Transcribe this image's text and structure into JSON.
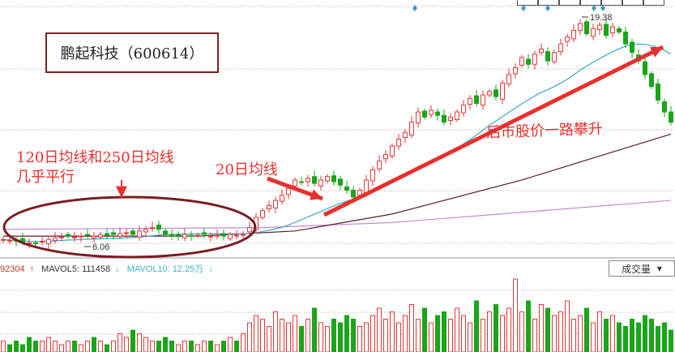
{
  "chart_data": {
    "type": "candlestick",
    "title": "鹏起科技（600614）",
    "ylim": [
      5.6,
      20.0
    ],
    "grid": "dotted horizontal",
    "closes": [
      6.3,
      6.25,
      6.2,
      6.15,
      6.1,
      6.08,
      6.2,
      6.3,
      6.4,
      6.45,
      6.5,
      6.45,
      6.5,
      6.55,
      6.5,
      6.6,
      6.55,
      6.6,
      6.65,
      6.7,
      6.6,
      6.8,
      6.9,
      7.0,
      6.9,
      6.6,
      6.5,
      6.55,
      6.6,
      6.5,
      6.55,
      6.6,
      6.5,
      6.55,
      6.5,
      6.6,
      6.55,
      6.6,
      7.0,
      7.6,
      8.0,
      8.3,
      8.6,
      8.9,
      9.3,
      9.8,
      9.7,
      9.9,
      9.6,
      9.8,
      10.0,
      9.7,
      9.5,
      9.2,
      8.8,
      9.2,
      9.8,
      10.4,
      10.9,
      11.3,
      11.8,
      12.2,
      12.6,
      13.2,
      13.8,
      13.5,
      13.9,
      13.6,
      13.2,
      13.5,
      13.8,
      14.2,
      14.6,
      14.3,
      14.8,
      15.0,
      14.7,
      15.5,
      16.0,
      16.4,
      17.0,
      16.6,
      17.2,
      17.5,
      16.8,
      17.3,
      17.8,
      18.2,
      18.6,
      19.0,
      18.4,
      18.7,
      18.9,
      18.3,
      18.8,
      18.5,
      17.8,
      17.3,
      16.8,
      16.0,
      15.3,
      14.5,
      13.8,
      13.2
    ],
    "volume": [
      3,
      2,
      3,
      2,
      4,
      3,
      3,
      4,
      3,
      2,
      3,
      3,
      2,
      3,
      4,
      3,
      2,
      3,
      5,
      4,
      6,
      5,
      4,
      3,
      3,
      4,
      3,
      2,
      3,
      3,
      2,
      3,
      3,
      2,
      3,
      4,
      3,
      5,
      8,
      10,
      9,
      7,
      11,
      9,
      8,
      10,
      7,
      9,
      12,
      8,
      7,
      9,
      8,
      10,
      9,
      7,
      8,
      10,
      12,
      9,
      11,
      8,
      10,
      13,
      9,
      12,
      8,
      10,
      11,
      9,
      12,
      10,
      8,
      14,
      9,
      11,
      13,
      10,
      12,
      20,
      11,
      14,
      9,
      13,
      12,
      10,
      11,
      14,
      9,
      10,
      12,
      8,
      11,
      9,
      10,
      8,
      7,
      9,
      8,
      10,
      9,
      7,
      8,
      6
    ],
    "ma_long": {
      "ma_a": [
        [
          0,
          6.9
        ],
        [
          40,
          7.0
        ],
        [
          60,
          7.3
        ],
        [
          80,
          7.9
        ],
        [
          103,
          8.6
        ]
      ],
      "ma_b": [
        [
          0,
          6.5
        ],
        [
          30,
          6.5
        ],
        [
          45,
          6.8
        ],
        [
          60,
          7.8
        ],
        [
          80,
          9.8
        ],
        [
          103,
          12.5
        ]
      ]
    },
    "annotations": {
      "high": "19.38",
      "low": "6.06"
    },
    "colors": {
      "up": "#e03a3a",
      "down": "#1aa51a",
      "ma20": "#3aa8c8",
      "ma_a": "#c58ad8",
      "ma_b": "#5a1f2a",
      "arrow": "#e8312f"
    }
  },
  "annotations": {
    "ma_parallel": "120日均线和250日均线\n几乎平行",
    "ma20": "20日均线",
    "rise": "后市股价一路攀升"
  },
  "volume_panel": {
    "prev_value": "92304",
    "mavol5": "MAVOL5: 111458",
    "mavol10": "MAVOL10: 12.25万",
    "selector": "成交量"
  }
}
